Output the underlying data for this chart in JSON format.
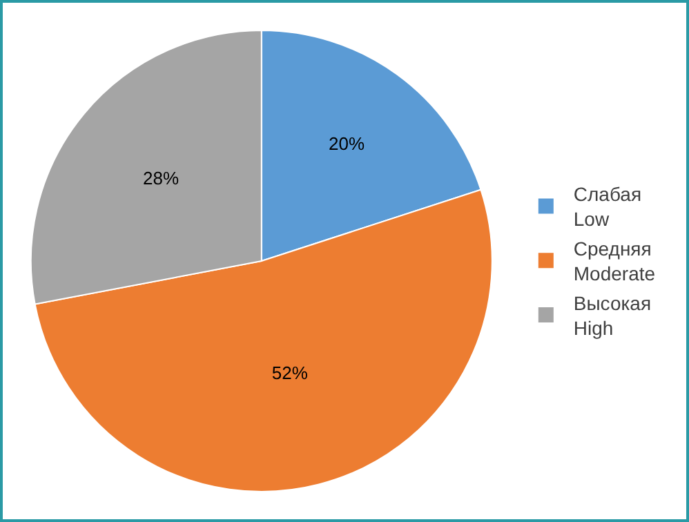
{
  "chart_data": {
    "type": "pie",
    "categories": [
      "Слабая\nLow",
      "Средняя\nModerate",
      "Высокая\nHigh"
    ],
    "values": [
      20,
      52,
      28
    ],
    "colors": [
      "#5b9bd5",
      "#ed7d31",
      "#a5a5a5"
    ],
    "value_labels": [
      "20%",
      "52%",
      "28%"
    ],
    "legend": "right"
  }
}
